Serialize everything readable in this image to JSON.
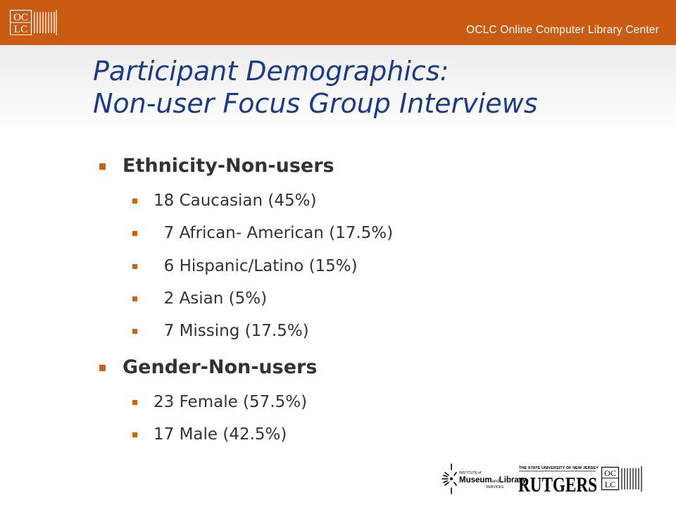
{
  "header": {
    "logo_text_top": "OC",
    "logo_text_bottom": "LC",
    "organization": "OCLC Online Computer Library Center",
    "bar_color": "#c95b12"
  },
  "slide": {
    "title_line1": "Participant Demographics:",
    "title_line2": "Non-user Focus Group Interviews",
    "title_color": "#1a3a8c",
    "bullet_color": "#cc6214",
    "sections": [
      {
        "heading": "Ethnicity-Non-users",
        "items": [
          "18 Caucasian (45%)",
          "  7 African- American (17.5%)",
          "  6 Hispanic/Latino (15%)",
          "  2 Asian (5%)",
          "  7 Missing (17.5%)"
        ]
      },
      {
        "heading": "Gender-Non-users",
        "items": [
          "23 Female (57.5%)",
          "17 Male (42.5%)"
        ]
      }
    ]
  },
  "footer": {
    "imls_line1": "INSTITUTE of",
    "imls_line2a": "Museum",
    "imls_line2b": "and",
    "imls_line2c": "Library",
    "imls_line3": "SERVICES",
    "rutgers_tagline": "THE STATE UNIVERSITY OF NEW JERSEY",
    "rutgers_name": "RUTGERS",
    "oclc_top": "OC",
    "oclc_bottom": "LC"
  }
}
